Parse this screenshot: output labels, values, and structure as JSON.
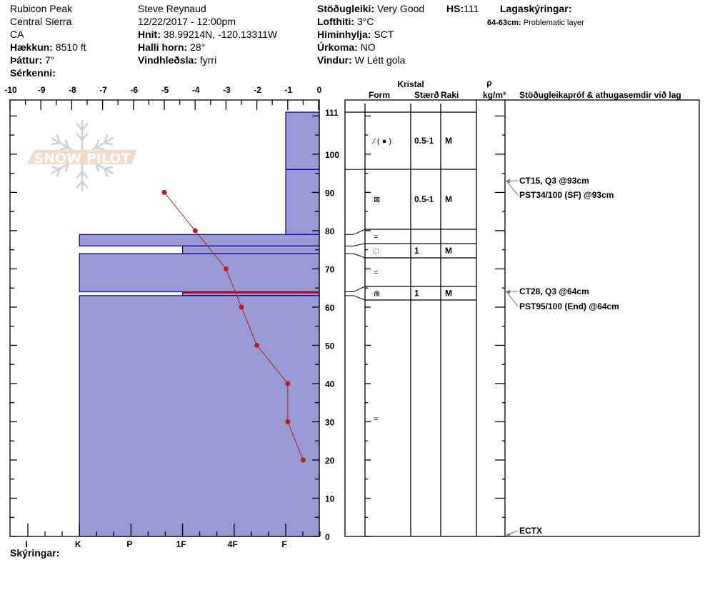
{
  "header": {
    "location": "Rubicon Peak",
    "range": "Central Sierra",
    "state": "CA",
    "elevation_label": "Hækkun:",
    "elevation": "8510 ft",
    "aspect_label": "Þáttur:",
    "aspect": "7°",
    "features_label": "Sérkenni:",
    "observer": "Steve Reynaud",
    "datetime": "12/22/2017 - 12:00pm",
    "coords_label": "Hnit:",
    "coords": "38.99214N, -120.13311W",
    "slope_label": "Halli horn:",
    "slope": "28°",
    "windload_label": "Vindhleðsla:",
    "windload": "fyrri",
    "stability_label": "Stöðugleiki:",
    "stability": "Very Good",
    "airtemp_label": "Lofthiti:",
    "airtemp": "3°C",
    "sky_label": "Himinhylja:",
    "sky": "SCT",
    "precip_label": "Úrkoma:",
    "precip": "NO",
    "wind_label": "Vindur:",
    "wind": "W Létt gola",
    "hs_label": "HS:",
    "hs": "111",
    "layer_notes_label": "Lagaskýringar:",
    "layer_note_range": "64-63cm:",
    "layer_note_text": "Problematic layer"
  },
  "logo": {
    "text": "SNOW PILOT"
  },
  "legend_label": "Skýringar:",
  "table_header": {
    "crystal": "Kristal",
    "form": "Form",
    "size": "Stærð",
    "moisture": "Raki",
    "rho": "ρ",
    "density_unit": "kg/m³",
    "tests": "Stöðugleikapróf & athugasemdir við lag"
  },
  "colors": {
    "layer_fill": "#9999d4",
    "layer_stroke": "#0000a0",
    "temp": "#b22222",
    "problem": "#cc0000"
  },
  "chart_data": {
    "type": "snow-profile",
    "temp_axis": {
      "ticks": [
        "-10",
        "-9",
        "-8",
        "-7",
        "-6",
        "-5",
        "-4",
        "-3",
        "-2",
        "-1",
        "0"
      ],
      "range": [
        -10,
        0
      ]
    },
    "depth_axis": {
      "ticks": [
        "111",
        "100",
        "90",
        "80",
        "70",
        "60",
        "50",
        "40",
        "30",
        "20",
        "10",
        "0"
      ],
      "range": [
        0,
        111
      ]
    },
    "hardness_axis": {
      "ticks": [
        "I",
        "K",
        "P",
        "1F",
        "4F",
        "F"
      ]
    },
    "temperature_profile": [
      {
        "depth": 90,
        "temp": -5
      },
      {
        "depth": 80,
        "temp": -4
      },
      {
        "depth": 70,
        "temp": -3
      },
      {
        "depth": 60,
        "temp": -2.5
      },
      {
        "depth": 50,
        "temp": -2
      },
      {
        "depth": 40,
        "temp": -1
      },
      {
        "depth": 30,
        "temp": -1
      },
      {
        "depth": 20,
        "temp": -0.5
      }
    ],
    "layers": [
      {
        "top": 111,
        "bottom": 96,
        "hardness": "F",
        "form": "⁄ ( ● )",
        "size": "0.5-1",
        "moisture": "M"
      },
      {
        "top": 96,
        "bottom": 79,
        "hardness": "F",
        "form": "⊠",
        "size": "0.5-1",
        "moisture": "M"
      },
      {
        "top": 79,
        "bottom": 76,
        "hardness": "K",
        "form": "=",
        "size": "",
        "moisture": ""
      },
      {
        "top": 76,
        "bottom": 74,
        "hardness": "1F",
        "form": "□",
        "size": "1",
        "moisture": "M"
      },
      {
        "top": 74,
        "bottom": 64,
        "hardness": "K",
        "form": "=",
        "size": "",
        "moisture": ""
      },
      {
        "top": 64,
        "bottom": 63,
        "hardness": "1F",
        "form": "⋒",
        "size": "1",
        "moisture": "M",
        "problematic": true
      },
      {
        "top": 63,
        "bottom": 0,
        "hardness": "K",
        "form": "=",
        "size": "",
        "moisture": ""
      }
    ],
    "tests": [
      {
        "depth": 93,
        "text": "CT15, Q3 @93cm"
      },
      {
        "depth": 93,
        "text": "PST34/100 (SF) @93cm"
      },
      {
        "depth": 64,
        "text": "CT28, Q3 @64cm"
      },
      {
        "depth": 64,
        "text": "PST95/100 (End) @64cm"
      },
      {
        "depth": 0,
        "text": "ECTX"
      }
    ]
  }
}
